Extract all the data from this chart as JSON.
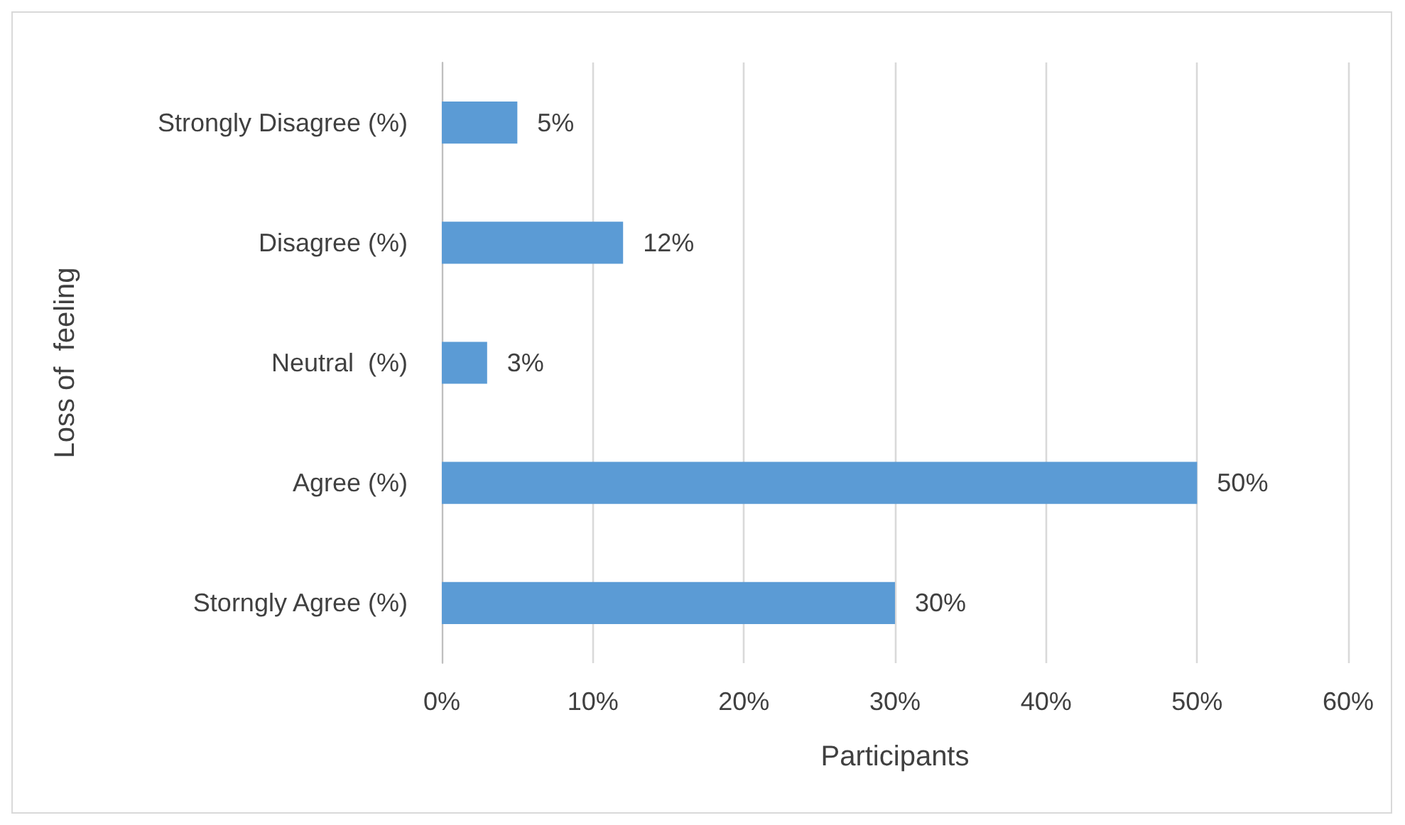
{
  "chart_data": {
    "type": "bar",
    "orientation": "horizontal",
    "xlabel": "Participants",
    "ylabel": "Loss of  feeling",
    "categories": [
      "Strongly Disagree (%)",
      "Disagree (%)",
      "Neutral  (%)",
      "Agree (%)",
      "Storngly Agree (%)"
    ],
    "values": [
      5,
      12,
      3,
      50,
      30
    ],
    "color": "#5b9bd5",
    "xlim": [
      0,
      60
    ],
    "xticks": [
      {
        "value": 0,
        "label": "0%"
      },
      {
        "value": 10,
        "label": "10%"
      },
      {
        "value": 20,
        "label": "20%"
      },
      {
        "value": 30,
        "label": "30%"
      },
      {
        "value": 40,
        "label": "40%"
      },
      {
        "value": 50,
        "label": "50%"
      },
      {
        "value": 60,
        "label": "60%"
      }
    ],
    "value_labels": [
      "5%",
      "12%",
      "3%",
      "50%",
      "30%"
    ],
    "grid": "x"
  }
}
